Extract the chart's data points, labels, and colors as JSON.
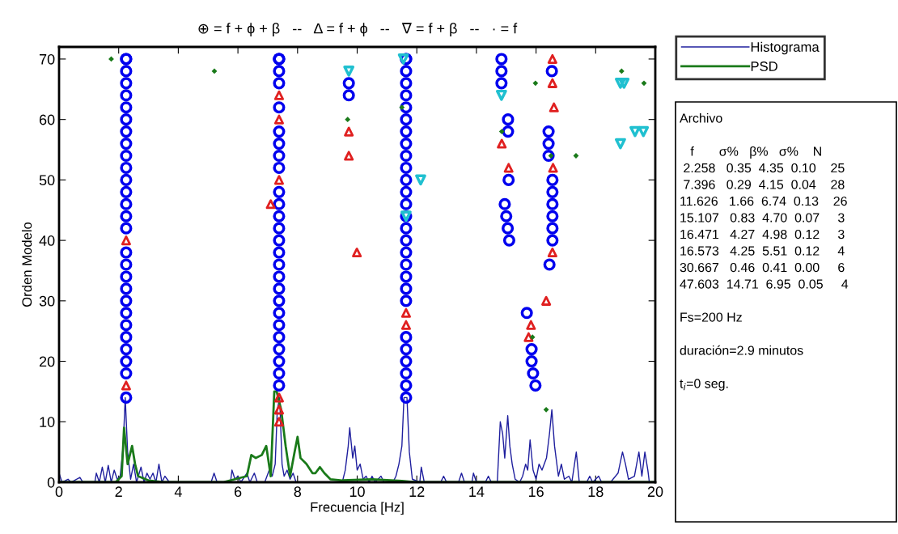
{
  "chart_data": {
    "type": "scatter",
    "title": "⊕ = f + ϕ + β   --   Δ = f + ϕ   --   ∇ = f + β   --   · = f",
    "xlabel": "Frecuencia [Hz]",
    "ylabel": "Orden Modelo",
    "xlim": [
      0,
      20
    ],
    "ylim": [
      0,
      72
    ],
    "xticks": [
      0,
      2,
      4,
      6,
      8,
      10,
      12,
      14,
      16,
      18,
      20
    ],
    "yticks": [
      0,
      10,
      20,
      30,
      40,
      50,
      60,
      70
    ],
    "grid": false,
    "legend": "right",
    "series": [
      {
        "name": "Histograma",
        "type": "line",
        "color": "#1f1f9e",
        "marker": "none",
        "x": [
          0,
          0.1,
          0.3,
          0.4,
          0.7,
          0.8,
          1.2,
          1.25,
          1.35,
          1.45,
          1.55,
          1.65,
          1.75,
          1.85,
          1.95,
          2.05,
          2.15,
          2.22,
          2.3,
          2.4,
          2.5,
          2.6,
          2.75,
          2.85,
          2.95,
          3.05,
          3.15,
          3.25,
          3.35,
          3.45,
          3.55,
          3.7,
          5.1,
          5.2,
          5.3,
          5.75,
          5.8,
          5.9,
          6.0,
          6.1,
          6.3,
          6.4,
          6.55,
          6.65,
          6.9,
          7.05,
          7.15,
          7.25,
          7.32,
          7.4,
          7.48,
          7.55,
          7.65,
          7.75,
          7.85,
          7.95,
          8.1,
          9.5,
          9.6,
          9.7,
          9.75,
          9.85,
          9.92,
          10.0,
          10.1,
          10.2,
          10.3,
          10.4,
          10.5,
          10.6,
          10.8,
          10.9,
          11.2,
          11.3,
          11.4,
          11.5,
          11.57,
          11.67,
          11.75,
          11.85,
          12.1,
          12.15,
          12.25,
          12.8,
          12.9,
          13.0,
          13.4,
          13.5,
          13.6,
          13.85,
          13.9,
          14.0,
          14.3,
          14.4,
          14.5,
          14.7,
          14.8,
          14.88,
          14.95,
          15.05,
          15.12,
          15.2,
          15.3,
          15.45,
          15.55,
          15.65,
          15.72,
          15.8,
          15.9,
          16.0,
          16.1,
          16.2,
          16.35,
          16.45,
          16.53,
          16.62,
          16.75,
          16.85,
          16.95,
          17.1,
          17.2,
          17.35,
          17.45,
          17.7,
          17.8,
          17.9,
          18.1,
          18.2,
          18.5,
          18.75,
          18.9,
          19.0,
          19.1,
          19.3,
          19.45,
          19.55,
          19.65,
          19.75,
          19.8
        ],
        "values": [
          1.5,
          0,
          0.5,
          0,
          0.8,
          0,
          0,
          1.5,
          0,
          2.5,
          0,
          2.8,
          0,
          2,
          0.5,
          1,
          6,
          14,
          5,
          0.5,
          3,
          0,
          2.5,
          0,
          1.5,
          0.5,
          1.5,
          0,
          3,
          0,
          1,
          0,
          0,
          1.5,
          0,
          0,
          2,
          0.5,
          1,
          0,
          1.5,
          0,
          1.5,
          0,
          0,
          2,
          1,
          3,
          12,
          14,
          3,
          1,
          2,
          0.5,
          1.5,
          0,
          0,
          0,
          2,
          6,
          9,
          4,
          6,
          2,
          3,
          0.5,
          1,
          0,
          1,
          0,
          1,
          0,
          0,
          1,
          3,
          6,
          14,
          14,
          5,
          0.5,
          0,
          2.5,
          0,
          0,
          1,
          0,
          0,
          1.5,
          0,
          0,
          1.5,
          0,
          0,
          1,
          0,
          0,
          10,
          8,
          4,
          11,
          6,
          3,
          0.5,
          0,
          1,
          3,
          2,
          7,
          2,
          0.5,
          3,
          2,
          4,
          8,
          12,
          6,
          1,
          3,
          0.5,
          1,
          0,
          5,
          0,
          0,
          1,
          0,
          1,
          0,
          0,
          1.5,
          5,
          3,
          0.5,
          1,
          5,
          1,
          5,
          2,
          0
        ]
      },
      {
        "name": "PSD",
        "type": "line",
        "color": "#1a7a1a",
        "marker": "none",
        "x": [
          0,
          1.9,
          2.1,
          2.18,
          2.3,
          2.45,
          2.55,
          2.65,
          3.0,
          3.5,
          5.5,
          5.9,
          6.3,
          6.45,
          6.6,
          6.8,
          6.95,
          7.1,
          7.22,
          7.3,
          7.45,
          7.6,
          7.75,
          7.9,
          8.0,
          8.1,
          8.3,
          8.5,
          8.6,
          8.75,
          8.9,
          9.1,
          9.5,
          10.5,
          11.5,
          12,
          20
        ],
        "values": [
          0,
          0,
          1,
          9,
          3,
          6,
          3,
          1,
          0.3,
          0,
          0,
          0.5,
          1,
          4.5,
          4,
          4.5,
          6,
          1,
          15,
          15,
          12,
          6,
          1,
          5,
          7.5,
          4,
          3,
          1.5,
          1.5,
          2.5,
          1.5,
          0.5,
          0.3,
          0.5,
          0.2,
          0,
          0
        ]
      },
      {
        "color": "#0000ee",
        "marker": "circle",
        "x": [
          2.25,
          2.25,
          2.25,
          2.25,
          2.25,
          2.25,
          2.25,
          2.25,
          2.25,
          2.25,
          2.25,
          2.25,
          2.25,
          2.25,
          2.25,
          2.25,
          2.25,
          2.25,
          2.25,
          2.25,
          2.25,
          2.25,
          2.25,
          2.25,
          2.25,
          2.25,
          2.25,
          2.25,
          7.38,
          7.38,
          7.38,
          7.38,
          7.38,
          7.38,
          7.38,
          7.38,
          7.38,
          7.38,
          7.38,
          7.38,
          7.38,
          7.38,
          7.38,
          7.38,
          7.38,
          7.38,
          7.38,
          7.38,
          7.38,
          7.38,
          7.38,
          7.38,
          7.38,
          7.38,
          7.38,
          9.72,
          9.72,
          11.64,
          11.64,
          11.64,
          11.64,
          11.64,
          11.64,
          11.64,
          11.64,
          11.64,
          11.64,
          11.64,
          11.64,
          11.64,
          11.64,
          11.64,
          11.64,
          11.64,
          11.64,
          11.64,
          11.64,
          11.64,
          11.64,
          11.64,
          11.64,
          11.64,
          11.64,
          11.64,
          11.64,
          14.84,
          14.84,
          14.84,
          15.06,
          15.06,
          15.08,
          14.95,
          15.0,
          15.05,
          15.1,
          15.69,
          15.85,
          15.85,
          15.9,
          15.98,
          16.53,
          16.42,
          16.42,
          16.42,
          16.55,
          16.55,
          16.55,
          16.55,
          16.55,
          16.55,
          16.45
        ],
        "values": [
          14,
          18,
          20,
          22,
          24,
          26,
          28,
          30,
          32,
          34,
          36,
          38,
          42,
          44,
          46,
          48,
          50,
          52,
          54,
          56,
          58,
          60,
          62,
          64,
          66,
          68,
          70,
          70,
          16,
          18,
          20,
          22,
          24,
          26,
          28,
          30,
          32,
          34,
          36,
          38,
          40,
          42,
          44,
          46,
          48,
          52,
          54,
          56,
          58,
          62,
          66,
          68,
          70,
          70,
          70,
          66,
          64,
          14,
          16,
          18,
          20,
          22,
          24,
          30,
          32,
          34,
          36,
          38,
          40,
          42,
          44,
          46,
          48,
          50,
          52,
          54,
          56,
          58,
          60,
          62,
          64,
          66,
          68,
          70,
          70,
          70,
          68,
          66,
          60,
          58,
          50,
          46,
          44,
          42,
          40,
          28,
          22,
          20,
          18,
          16,
          68,
          58,
          56,
          54,
          50,
          48,
          46,
          44,
          42,
          40,
          36
        ]
      },
      {
        "color": "#e02020",
        "marker": "triangle",
        "x": [
          2.25,
          2.25,
          7.38,
          7.38,
          7.38,
          7.38,
          7.38,
          7.38,
          7.1,
          9.72,
          9.72,
          9.99,
          11.64,
          11.64,
          14.85,
          15.08,
          15.83,
          15.75,
          16.55,
          16.55,
          16.6,
          16.57,
          16.55,
          16.34
        ],
        "values": [
          16,
          40,
          64,
          60,
          50,
          14,
          12,
          10,
          46,
          58,
          54,
          38,
          28,
          26,
          56,
          52,
          26,
          24,
          70,
          66,
          62,
          52,
          38,
          30
        ]
      },
      {
        "color": "#20c0d0",
        "marker": "triangle_down",
        "x": [
          9.72,
          11.55,
          11.64,
          12.13,
          14.84,
          18.83,
          18.95,
          18.83,
          19.32,
          19.6
        ],
        "values": [
          68,
          70,
          44,
          50,
          64,
          66,
          66,
          56,
          58,
          58
        ]
      },
      {
        "color": "#1a7a1a",
        "marker": "diamond",
        "x": [
          1.75,
          5.21,
          9.68,
          11.5,
          14.85,
          15.88,
          16.34,
          15.98,
          16.5,
          17.34,
          18.87,
          19.62
        ],
        "values": [
          70,
          68,
          60,
          62,
          58,
          24,
          12,
          66,
          54,
          54,
          68,
          66
        ]
      }
    ],
    "annotations": [
      "Archivo",
      "   f       σ%   β%   σ%    N",
      " 2.258   0.35  4.35  0.10    25",
      " 7.396   0.29  4.15  0.04    28",
      "11.626   1.66  6.74  0.13    26",
      "15.107   0.83  4.70  0.07     3",
      "16.471   4.27  4.98  0.12     3",
      "16.573   4.25  5.51  0.12     4",
      "30.667   0.46  0.41  0.00     6",
      "47.603  14.71  6.95  0.05     4",
      "Fs=200 Hz",
      "duración=2.9 minutos",
      "t$_{i}$=0 seg."
    ]
  }
}
